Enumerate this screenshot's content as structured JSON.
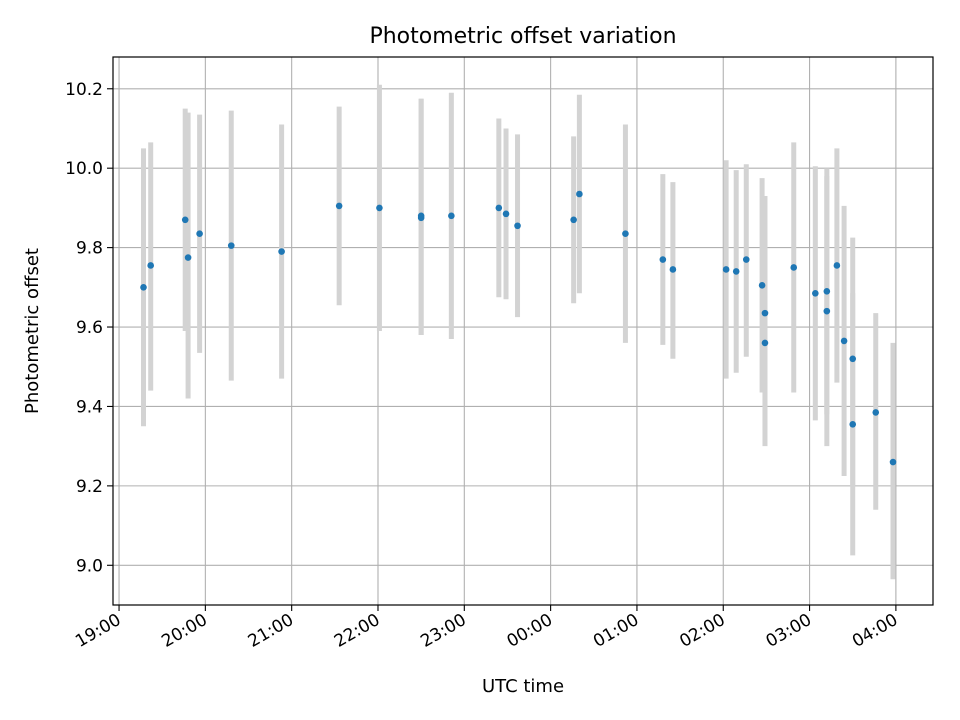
{
  "chart_data": {
    "type": "scatter",
    "title": "Photometric offset variation",
    "xlabel": "UTC time",
    "ylabel": "Photometric offset",
    "x_unit": "hours of UTC clock, values above 24 are the next day after midnight",
    "xlim": [
      18.93,
      28.43
    ],
    "ylim": [
      8.9,
      10.28
    ],
    "grid": true,
    "x_tick_values": [
      19,
      20,
      21,
      22,
      23,
      24,
      25,
      26,
      27,
      28
    ],
    "x_tick_labels": [
      "19:00",
      "20:00",
      "21:00",
      "22:00",
      "23:00",
      "00:00",
      "01:00",
      "02:00",
      "03:00",
      "04:00"
    ],
    "y_tick_values": [
      9.0,
      9.2,
      9.4,
      9.6,
      9.8,
      10.0,
      10.2
    ],
    "y_tick_labels": [
      "9.0",
      "9.2",
      "9.4",
      "9.6",
      "9.8",
      "10.0",
      "10.2"
    ],
    "point_color": "#1f77b4",
    "errorbar_color": "#d3d3d3",
    "points": [
      {
        "time": "19:17",
        "y": 9.7,
        "low": 9.35,
        "high": 10.05
      },
      {
        "time": "19:22",
        "y": 9.755,
        "low": 9.44,
        "high": 10.065
      },
      {
        "time": "19:46",
        "y": 9.87,
        "low": 9.59,
        "high": 10.15
      },
      {
        "time": "19:48",
        "y": 9.775,
        "low": 9.42,
        "high": 10.14
      },
      {
        "time": "19:56",
        "y": 9.835,
        "low": 9.535,
        "high": 10.135
      },
      {
        "time": "20:18",
        "y": 9.805,
        "low": 9.465,
        "high": 10.145
      },
      {
        "time": "20:53",
        "y": 9.79,
        "low": 9.47,
        "high": 10.11
      },
      {
        "time": "21:33",
        "y": 9.905,
        "low": 9.655,
        "high": 10.155
      },
      {
        "time": "22:01",
        "y": 9.9,
        "low": 9.59,
        "high": 10.21
      },
      {
        "time": "22:30",
        "y": 9.88,
        "low": 9.58,
        "high": 10.175
      },
      {
        "time": "22:30",
        "y": 9.875,
        "low": 9.58,
        "high": 10.175
      },
      {
        "time": "22:51",
        "y": 9.88,
        "low": 9.57,
        "high": 10.19
      },
      {
        "time": "23:24",
        "y": 9.9,
        "low": 9.675,
        "high": 10.125
      },
      {
        "time": "23:29",
        "y": 9.885,
        "low": 9.67,
        "high": 10.1
      },
      {
        "time": "23:37",
        "y": 9.855,
        "low": 9.625,
        "high": 10.085
      },
      {
        "time": "00:16",
        "y": 9.87,
        "low": 9.66,
        "high": 10.08
      },
      {
        "time": "00:20",
        "y": 9.935,
        "low": 9.685,
        "high": 10.185
      },
      {
        "time": "00:52",
        "y": 9.835,
        "low": 9.56,
        "high": 10.11
      },
      {
        "time": "01:18",
        "y": 9.77,
        "low": 9.555,
        "high": 9.985
      },
      {
        "time": "01:25",
        "y": 9.745,
        "low": 9.52,
        "high": 9.965
      },
      {
        "time": "02:02",
        "y": 9.745,
        "low": 9.47,
        "high": 10.02
      },
      {
        "time": "02:09",
        "y": 9.74,
        "low": 9.485,
        "high": 9.995
      },
      {
        "time": "02:16",
        "y": 9.77,
        "low": 9.525,
        "high": 10.01
      },
      {
        "time": "02:27",
        "y": 9.705,
        "low": 9.435,
        "high": 9.975
      },
      {
        "time": "02:29",
        "y": 9.635,
        "low": 9.34,
        "high": 9.93
      },
      {
        "time": "02:29",
        "y": 9.56,
        "low": 9.3,
        "high": 9.82
      },
      {
        "time": "02:49",
        "y": 9.75,
        "low": 9.435,
        "high": 10.065
      },
      {
        "time": "03:04",
        "y": 9.685,
        "low": 9.365,
        "high": 10.005
      },
      {
        "time": "03:12",
        "y": 9.69,
        "low": 9.38,
        "high": 10.0
      },
      {
        "time": "03:12",
        "y": 9.64,
        "low": 9.3,
        "high": 9.98
      },
      {
        "time": "03:19",
        "y": 9.755,
        "low": 9.46,
        "high": 10.05
      },
      {
        "time": "03:24",
        "y": 9.565,
        "low": 9.225,
        "high": 9.905
      },
      {
        "time": "03:30",
        "y": 9.52,
        "low": 9.2,
        "high": 9.825
      },
      {
        "time": "03:30",
        "y": 9.355,
        "low": 9.025,
        "high": 9.685
      },
      {
        "time": "03:46",
        "y": 9.385,
        "low": 9.14,
        "high": 9.635
      },
      {
        "time": "03:58",
        "y": 9.26,
        "low": 8.965,
        "high": 9.56
      }
    ]
  }
}
